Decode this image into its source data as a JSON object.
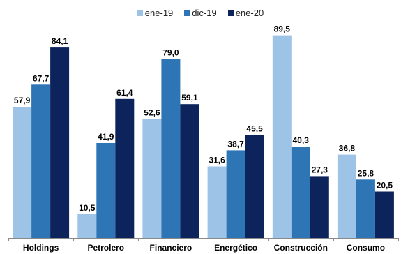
{
  "chart_data": {
    "type": "bar",
    "categories": [
      "Holdings",
      "Petrolero",
      "Financiero",
      "Energético",
      "Construcción",
      "Consumo"
    ],
    "series": [
      {
        "name": "ene-19",
        "color": "#9DC3E6",
        "values": [
          57.9,
          10.5,
          52.6,
          31.6,
          89.5,
          36.8
        ],
        "labels": [
          "57,9",
          "10,5",
          "52,6",
          "31,6",
          "89,5",
          "36,8"
        ]
      },
      {
        "name": "dic-19",
        "color": "#2E75B6",
        "values": [
          67.7,
          41.9,
          79.0,
          38.7,
          40.3,
          25.8
        ],
        "labels": [
          "67,7",
          "41,9",
          "79,0",
          "38,7",
          "40,3",
          "25,8"
        ]
      },
      {
        "name": "ene-20",
        "color": "#0D235C",
        "values": [
          84.1,
          61.4,
          59.1,
          45.5,
          27.3,
          20.5
        ],
        "labels": [
          "84,1",
          "61,4",
          "59,1",
          "45,5",
          "27,3",
          "20,5"
        ]
      }
    ],
    "ylim": [
      0,
      100
    ],
    "grid": false,
    "legend_position": "top-center",
    "title": "",
    "xlabel": "",
    "ylabel": ""
  }
}
